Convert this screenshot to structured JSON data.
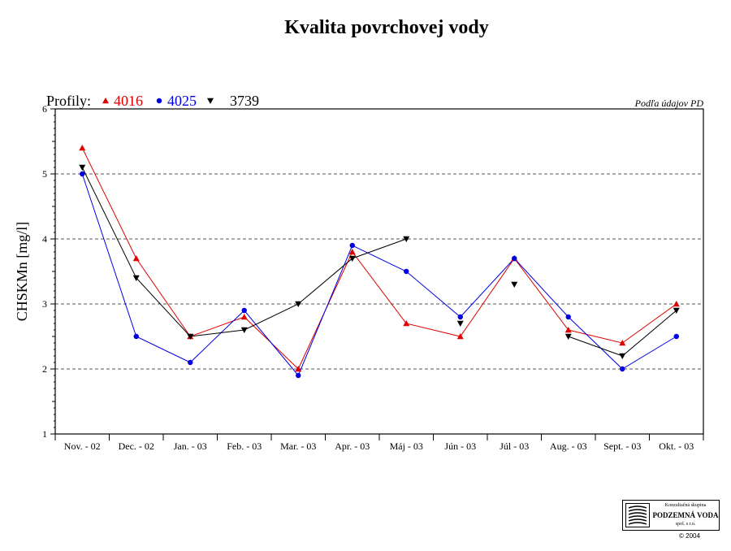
{
  "chart_data": {
    "type": "line",
    "title": "Kvalita povrchovej vody",
    "ylabel": "CHSKMn [mg/l]",
    "xlabel": "",
    "ylim": [
      1,
      6
    ],
    "yticks": [
      1,
      2,
      3,
      4,
      5,
      6
    ],
    "grid": "horizontal dashed",
    "categories": [
      "Nov. - 02",
      "Dec. - 02",
      "Jan. - 03",
      "Feb. - 03",
      "Mar. - 03",
      "Apr. - 03",
      "Máj - 03",
      "Jún - 03",
      "Júl - 03",
      "Aug. - 03",
      "Sept. - 03",
      "Okt. - 03"
    ],
    "legend_prefix": "Profily:",
    "legend_position": "top-left",
    "source_note": "Podľa údajov PD",
    "series": [
      {
        "name": "4016",
        "color": "#e00000",
        "marker": "triangle-up",
        "points": [
          {
            "x": "Nov. - 02",
            "y": 5.4
          },
          {
            "x": "Dec. - 02",
            "y": 3.7
          },
          {
            "x": "Jan. - 03",
            "y": 2.5
          },
          {
            "x": "Feb. - 03",
            "y": 2.8
          },
          {
            "x": "Mar. - 03",
            "y": 2.0
          },
          {
            "x": "Apr. - 03",
            "y": 3.8
          },
          {
            "x": "Máj - 03",
            "y": 2.7
          },
          {
            "x": "Jún - 03",
            "y": 2.5
          },
          {
            "x": "Júl - 03",
            "y": 3.7
          },
          {
            "x": "Aug. - 03",
            "y": 2.6
          },
          {
            "x": "Sept. - 03",
            "y": 2.4
          },
          {
            "x": "Okt. - 03",
            "y": 3.0
          }
        ]
      },
      {
        "name": "4025",
        "color": "#0000e0",
        "marker": "circle",
        "points": [
          {
            "x": "Nov. - 02",
            "y": 5.0
          },
          {
            "x": "Dec. - 02",
            "y": 2.5
          },
          {
            "x": "Jan. - 03",
            "y": 2.1
          },
          {
            "x": "Feb. - 03",
            "y": 2.9
          },
          {
            "x": "Mar. - 03",
            "y": 1.9
          },
          {
            "x": "Apr. - 03",
            "y": 3.9
          },
          {
            "x": "Máj - 03",
            "y": 3.5
          },
          {
            "x": "Jún - 03",
            "y": 2.8
          },
          {
            "x": "Júl - 03",
            "y": 3.7
          },
          {
            "x": "Aug. - 03",
            "y": 2.8
          },
          {
            "x": "Sept. - 03",
            "y": 2.0
          },
          {
            "x": "Okt. - 03",
            "y": 2.5
          }
        ]
      },
      {
        "name": "3739",
        "color": "#000000",
        "marker": "triangle-down",
        "points": [
          {
            "x": "Nov. - 02",
            "y": 5.1
          },
          {
            "x": "Dec. - 02",
            "y": 3.4
          },
          {
            "x": "Jan. - 03",
            "y": 2.5
          },
          {
            "x": "Feb. - 03",
            "y": 2.6
          },
          {
            "x": "Mar. - 03",
            "y": 3.0
          },
          {
            "x": "Apr. - 03",
            "y": 3.7
          },
          {
            "x": "Máj - 03",
            "y": 4.0
          },
          {
            "x": "Jún - 03",
            "y": 2.7
          },
          {
            "x": "Júl - 03",
            "y": 3.3
          },
          {
            "x": "Aug. - 03",
            "y": 2.5
          },
          {
            "x": "Sept. - 03",
            "y": 2.2
          },
          {
            "x": "Okt. - 03",
            "y": 2.9
          }
        ],
        "breaks_after": [
          "Máj - 03",
          "Jún - 03",
          "Júl - 03"
        ]
      }
    ]
  },
  "logo": {
    "top_text": "Konzultačná skupina",
    "name": "PODZEMNÁ VODA",
    "sub_text": "spol. s r.o."
  },
  "copyright": "© 2004"
}
